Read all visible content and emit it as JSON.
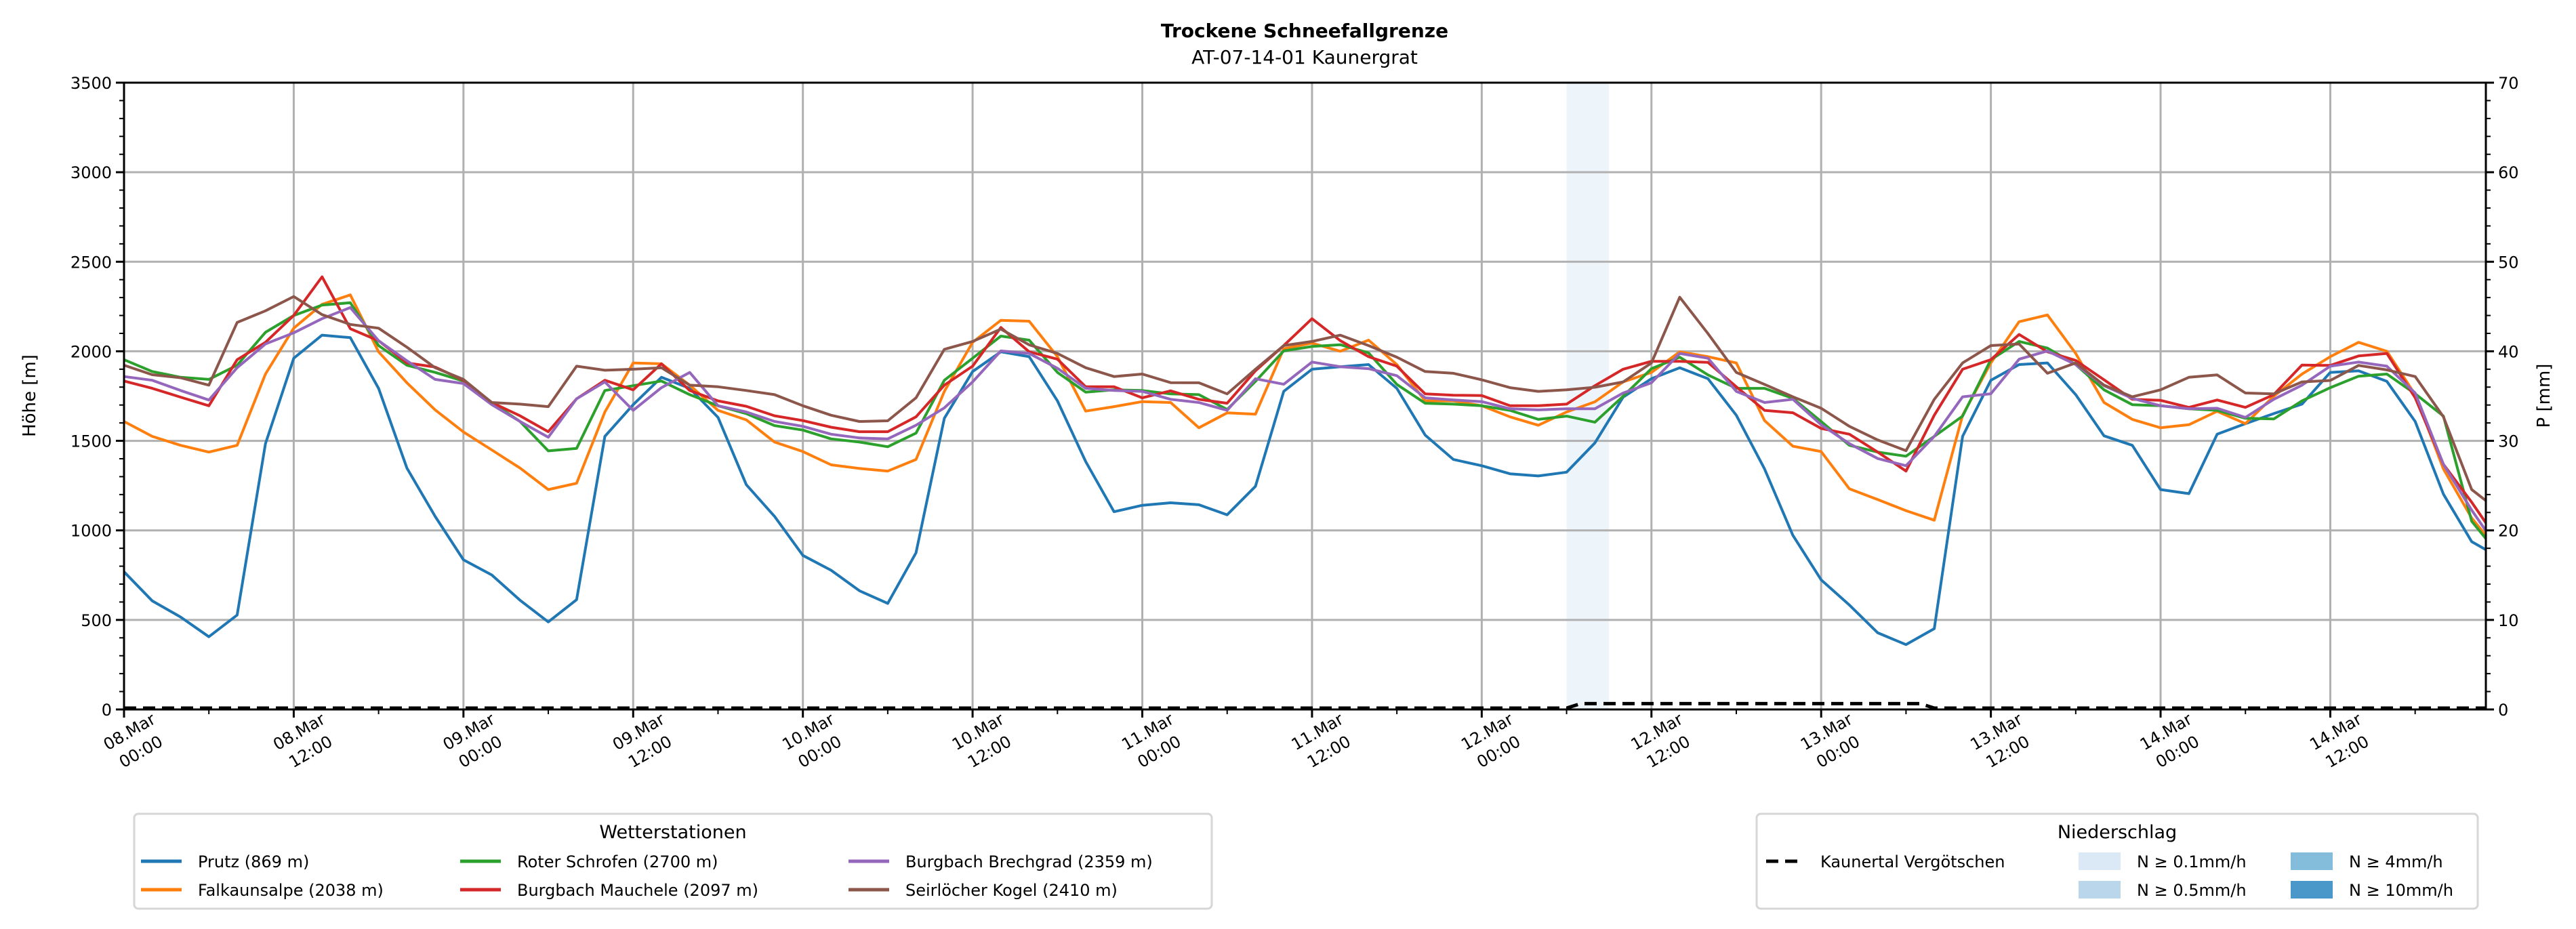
{
  "chart_data": {
    "type": "line",
    "title": "Trockene Schneefallgrenze",
    "subtitle": "AT-07-14-01 Kaunergrat",
    "ylabel": "Höhe [m]",
    "y2label": "P [mm]",
    "ylim": [
      0,
      3500
    ],
    "y2lim": [
      0,
      70
    ],
    "yticks": [
      "0",
      "500",
      "1000",
      "1500",
      "2000",
      "2500",
      "3000",
      "3500"
    ],
    "y2ticks": [
      "0",
      "10",
      "20",
      "30",
      "40",
      "50",
      "60",
      "70"
    ],
    "x_unit": "hours since 08.Mar 00:00",
    "xlim": [
      0,
      167
    ],
    "grid": true,
    "xticks": [
      {
        "hour": 0,
        "date": "08.Mar",
        "time": "00:00"
      },
      {
        "hour": 12,
        "date": "08.Mar",
        "time": "12:00"
      },
      {
        "hour": 24,
        "date": "09.Mar",
        "time": "00:00"
      },
      {
        "hour": 36,
        "date": "09.Mar",
        "time": "12:00"
      },
      {
        "hour": 48,
        "date": "10.Mar",
        "time": "00:00"
      },
      {
        "hour": 60,
        "date": "10.Mar",
        "time": "12:00"
      },
      {
        "hour": 72,
        "date": "11.Mar",
        "time": "00:00"
      },
      {
        "hour": 84,
        "date": "11.Mar",
        "time": "12:00"
      },
      {
        "hour": 96,
        "date": "12.Mar",
        "time": "00:00"
      },
      {
        "hour": 108,
        "date": "12.Mar",
        "time": "12:00"
      },
      {
        "hour": 120,
        "date": "13.Mar",
        "time": "00:00"
      },
      {
        "hour": 132,
        "date": "13.Mar",
        "time": "12:00"
      },
      {
        "hour": 144,
        "date": "14.Mar",
        "time": "00:00"
      },
      {
        "hour": 156,
        "date": "14.Mar",
        "time": "12:00"
      }
    ],
    "x": [
      0,
      2,
      4,
      6,
      8,
      10,
      12,
      14,
      16,
      18,
      20,
      22,
      24,
      26,
      28,
      30,
      32,
      34,
      36,
      38,
      40,
      42,
      44,
      46,
      48,
      50,
      52,
      54,
      56,
      58,
      60,
      62,
      64,
      66,
      68,
      70,
      72,
      74,
      76,
      78,
      80,
      82,
      84,
      86,
      88,
      90,
      92,
      94,
      96,
      98,
      100,
      102,
      104,
      106,
      108,
      110,
      112,
      114,
      116,
      118,
      120,
      122,
      124,
      126,
      128,
      130,
      132,
      134,
      136,
      138,
      140,
      142,
      144,
      146,
      148,
      150,
      152,
      154,
      156,
      158,
      160,
      162,
      164,
      166,
      167
    ],
    "series": [
      {
        "name": "Prutz (869 m)",
        "color": "#1f77b4",
        "values": [
          769,
          606,
          516,
          406,
          527,
          1484,
          1961,
          2090,
          2076,
          1793,
          1348,
          1078,
          836,
          751,
          610,
          489,
          613,
          1525,
          1702,
          1855,
          1793,
          1631,
          1255,
          1078,
          860,
          777,
          663,
          592,
          875,
          1626,
          1887,
          1997,
          1970,
          1723,
          1384,
          1104,
          1140,
          1154,
          1143,
          1087,
          1246,
          1776,
          1900,
          1914,
          1926,
          1793,
          1532,
          1396,
          1361,
          1316,
          1304,
          1325,
          1488,
          1744,
          1847,
          1908,
          1847,
          1643,
          1343,
          972,
          724,
          583,
          428,
          362,
          451,
          1525,
          1838,
          1926,
          1935,
          1758,
          1528,
          1475,
          1228,
          1205,
          1537,
          1596,
          1652,
          1705,
          1882,
          1891,
          1832,
          1608,
          1202,
          937,
          892
        ]
      },
      {
        "name": "Falkaunsalpe (2038 m)",
        "color": "#ff7f0e",
        "values": [
          1608,
          1525,
          1475,
          1437,
          1475,
          1873,
          2129,
          2262,
          2315,
          1997,
          1824,
          1673,
          1550,
          1449,
          1348,
          1228,
          1263,
          1661,
          1935,
          1930,
          1811,
          1670,
          1617,
          1493,
          1440,
          1366,
          1346,
          1331,
          1396,
          1776,
          2050,
          2173,
          2168,
          1970,
          1666,
          1691,
          1719,
          1714,
          1573,
          1656,
          1649,
          2014,
          2046,
          2000,
          2062,
          1926,
          1723,
          1723,
          1696,
          1634,
          1587,
          1661,
          1718,
          1829,
          1882,
          1997,
          1970,
          1935,
          1613,
          1470,
          1440,
          1232,
          1172,
          1110,
          1057,
          1643,
          1935,
          2165,
          2203,
          1988,
          1714,
          1620,
          1573,
          1590,
          1665,
          1596,
          1749,
          1873,
          1970,
          2050,
          2000,
          1758,
          1343,
          1069,
          972
        ]
      },
      {
        "name": "Roter Schrofen (2700 m)",
        "color": "#2ca02c",
        "values": [
          1953,
          1887,
          1855,
          1843,
          1922,
          2106,
          2200,
          2258,
          2271,
          2032,
          1922,
          1882,
          1834,
          1714,
          1608,
          1444,
          1458,
          1781,
          1808,
          1834,
          1758,
          1696,
          1652,
          1585,
          1560,
          1511,
          1493,
          1467,
          1543,
          1838,
          1961,
          2085,
          2062,
          1882,
          1772,
          1785,
          1781,
          1762,
          1758,
          1675,
          1832,
          2002,
          2027,
          2037,
          1991,
          1815,
          1710,
          1705,
          1696,
          1670,
          1620,
          1638,
          1604,
          1749,
          1903,
          1967,
          1868,
          1793,
          1793,
          1737,
          1608,
          1475,
          1437,
          1414,
          1525,
          1638,
          1953,
          2055,
          2018,
          1926,
          1785,
          1702,
          1696,
          1679,
          1670,
          1626,
          1622,
          1723,
          1797,
          1861,
          1873,
          1763,
          1638,
          1051,
          954
        ]
      },
      {
        "name": "Burgbach Mauchele (2097 m)",
        "color": "#d62728",
        "values": [
          1834,
          1793,
          1744,
          1696,
          1953,
          2050,
          2200,
          2416,
          2126,
          2059,
          1935,
          1912,
          1838,
          1714,
          1640,
          1551,
          1735,
          1838,
          1785,
          1930,
          1781,
          1723,
          1693,
          1640,
          1613,
          1576,
          1551,
          1551,
          1634,
          1811,
          1917,
          2133,
          1997,
          1956,
          1802,
          1802,
          1740,
          1779,
          1732,
          1710,
          1891,
          2032,
          2182,
          2059,
          1970,
          1917,
          1762,
          1755,
          1753,
          1696,
          1696,
          1705,
          1808,
          1900,
          1944,
          1944,
          1938,
          1802,
          1670,
          1657,
          1569,
          1537,
          1437,
          1331,
          1643,
          1900,
          1953,
          2094,
          1997,
          1949,
          1841,
          1732,
          1726,
          1687,
          1728,
          1687,
          1758,
          1923,
          1921,
          1974,
          1988,
          1740,
          1369,
          1157,
          1042
        ]
      },
      {
        "name": "Burgbach Brechgrad (2359 m)",
        "color": "#9467bd",
        "values": [
          1859,
          1838,
          1781,
          1728,
          1908,
          2041,
          2103,
          2182,
          2244,
          2059,
          1947,
          1843,
          1820,
          1702,
          1608,
          1520,
          1735,
          1829,
          1670,
          1797,
          1882,
          1696,
          1661,
          1608,
          1581,
          1537,
          1516,
          1511,
          1587,
          1684,
          1829,
          2002,
          1988,
          1905,
          1793,
          1781,
          1776,
          1732,
          1714,
          1670,
          1847,
          1816,
          1940,
          1914,
          1903,
          1864,
          1740,
          1728,
          1719,
          1679,
          1673,
          1679,
          1679,
          1767,
          1824,
          1988,
          1961,
          1776,
          1714,
          1732,
          1590,
          1484,
          1401,
          1361,
          1525,
          1746,
          1763,
          1956,
          2002,
          1926,
          1808,
          1737,
          1696,
          1679,
          1682,
          1631,
          1732,
          1811,
          1917,
          1940,
          1917,
          1767,
          1369,
          1113,
          998
        ]
      },
      {
        "name": "Seirlöcher Kogel (2410 m)",
        "color": "#8c564b",
        "values": [
          1922,
          1869,
          1852,
          1811,
          2161,
          2226,
          2306,
          2205,
          2150,
          2129,
          2023,
          1908,
          1843,
          1714,
          1705,
          1691,
          1917,
          1894,
          1900,
          1908,
          1811,
          1802,
          1781,
          1758,
          1696,
          1643,
          1608,
          1612,
          1740,
          2011,
          2055,
          2124,
          2036,
          1988,
          1908,
          1859,
          1873,
          1825,
          1824,
          1762,
          1900,
          2032,
          2055,
          2090,
          2032,
          1967,
          1887,
          1877,
          1841,
          1797,
          1776,
          1785,
          1799,
          1829,
          1935,
          2302,
          2099,
          1882,
          1815,
          1746,
          1682,
          1581,
          1505,
          1445,
          1732,
          1935,
          2032,
          2041,
          1877,
          1935,
          1811,
          1746,
          1785,
          1855,
          1868,
          1767,
          1762,
          1829,
          1837,
          1921,
          1896,
          1859,
          1634,
          1228,
          1166
        ]
      }
    ],
    "precipitation": {
      "name": "Kaunertal Vergötschen",
      "color": "#000000",
      "axis": "y2",
      "x": [
        0,
        102,
        103,
        127,
        128,
        167
      ],
      "values": [
        0,
        0,
        0.5,
        0.5,
        0,
        0
      ]
    },
    "precip_shading": [
      {
        "start": 102,
        "end": 105,
        "class": 0
      }
    ],
    "legend_stations": {
      "title": "Wetterstationen",
      "position": "bottom-left"
    },
    "legend_precip": {
      "title": "Niederschlag",
      "position": "bottom-right",
      "classes": [
        {
          "label": "N ≥ 0.1mm/h",
          "color": "#dbe9f6"
        },
        {
          "label": "N ≥ 0.5mm/h",
          "color": "#bad6eb"
        },
        {
          "label": "N ≥ 4mm/h",
          "color": "#84bcdb"
        },
        {
          "label": "N ≥ 10mm/h",
          "color": "#4a98c9"
        }
      ]
    }
  }
}
